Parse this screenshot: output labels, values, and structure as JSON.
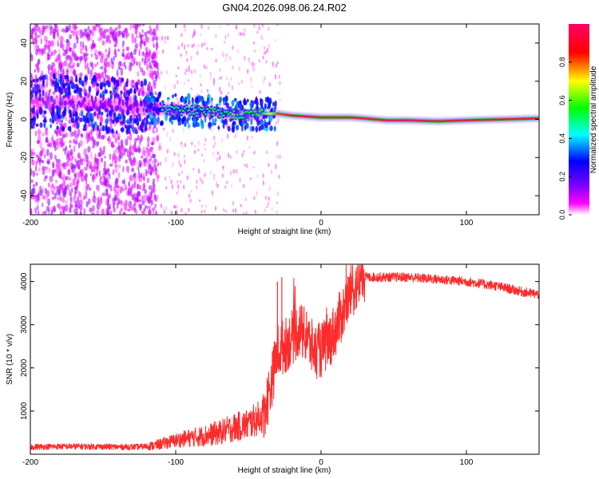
{
  "title": "GN04.2026.098.06.24.R02",
  "chart_data": [
    {
      "type": "heatmap",
      "xlabel": "Height of straight line (km)",
      "ylabel": "Frequency (Hz)",
      "xlim": [
        -200,
        150
      ],
      "ylim": [
        -50,
        50
      ],
      "xticks": [
        -200,
        -100,
        0,
        100
      ],
      "yticks": [
        -40,
        -20,
        0,
        20,
        40
      ],
      "colorbar": {
        "label": "Normalized spectral amplitude",
        "range": [
          0,
          1
        ],
        "ticks": [
          0.0,
          0.2,
          0.4,
          0.6,
          0.8
        ],
        "tick_labels": [
          "0.0",
          "0.2",
          "0.4",
          "0.6",
          "0.8"
        ],
        "stops": [
          "#ffffff",
          "#ff00ff",
          "#7f00ff",
          "#0000ff",
          "#00ffff",
          "#00ff00",
          "#ffff00",
          "#ff0000",
          "#ff0066"
        ]
      },
      "ridge": {
        "description_points_x": [
          -200,
          -175,
          -150,
          -125,
          -100,
          -75,
          -55,
          -40,
          -30,
          -20,
          -10,
          0,
          10,
          20,
          30,
          45,
          60,
          80,
          100,
          125,
          150
        ],
        "freq_y": [
          9,
          9,
          8,
          6,
          5,
          4,
          2,
          3,
          3,
          2,
          1.5,
          1,
          1,
          1,
          0.5,
          -0.5,
          -0.5,
          -1,
          -0.5,
          0,
          0.5
        ],
        "amplitude": [
          0.25,
          0.28,
          0.3,
          0.38,
          0.5,
          0.52,
          0.55,
          0.6,
          0.82,
          0.85,
          0.9,
          0.95,
          0.98,
          0.98,
          0.95,
          0.97,
          0.98,
          0.97,
          0.95,
          0.92,
          0.9
        ]
      }
    },
    {
      "type": "line",
      "series": [
        {
          "name": "SNR",
          "color": "#ff2a2a",
          "x": [
            -200,
            -180,
            -160,
            -140,
            -125,
            -115,
            -100,
            -90,
            -80,
            -70,
            -60,
            -50,
            -45,
            -40,
            -35,
            -30,
            -25,
            -20,
            -15,
            -10,
            -5,
            0,
            5,
            10,
            15,
            20,
            25,
            30,
            40,
            60,
            80,
            100,
            120,
            140,
            150
          ],
          "y": [
            170,
            180,
            180,
            170,
            170,
            200,
            320,
            380,
            430,
            500,
            620,
            700,
            800,
            900,
            1500,
            2400,
            2500,
            2700,
            2900,
            2700,
            2400,
            2400,
            2600,
            2900,
            3300,
            3700,
            3950,
            4100,
            4100,
            4100,
            4050,
            4000,
            3900,
            3750,
            3700
          ]
        }
      ],
      "spikes": [
        {
          "x": -30,
          "y": 4000
        },
        {
          "x": -27,
          "y": 4100
        },
        {
          "x": -10,
          "y": 3300
        },
        {
          "x": 20,
          "y": 3800
        }
      ],
      "xlabel": "Height of straight line (km)",
      "ylabel": "SNR (10 * v/v)",
      "xlim": [
        -200,
        150
      ],
      "ylim": [
        0,
        4400
      ],
      "xticks": [
        -200,
        -100,
        0,
        100
      ],
      "yticks": [
        1000,
        2000,
        3000,
        4000
      ]
    }
  ]
}
